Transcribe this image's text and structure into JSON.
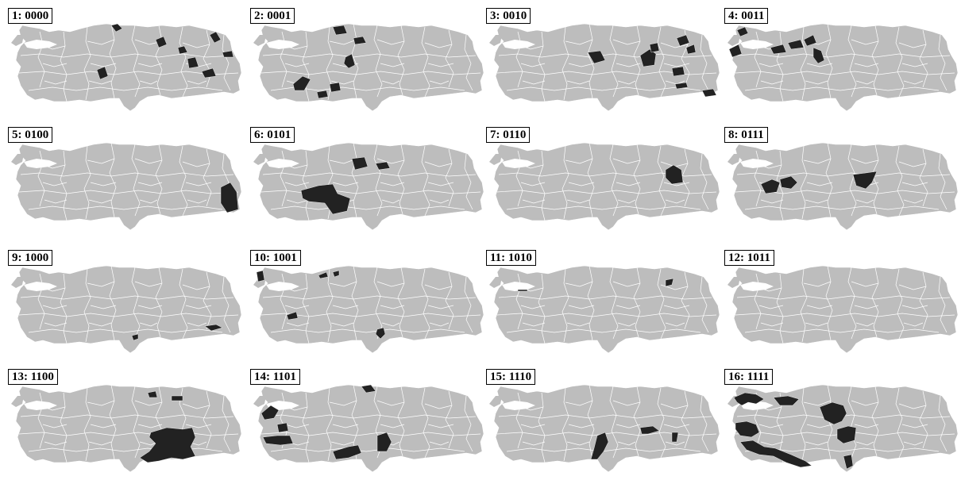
{
  "figure": {
    "panels": [
      {
        "label": "1: 0000"
      },
      {
        "label": "2: 0001"
      },
      {
        "label": "3: 0010"
      },
      {
        "label": "4: 0011"
      },
      {
        "label": "5: 0100"
      },
      {
        "label": "6: 0101"
      },
      {
        "label": "7: 0110"
      },
      {
        "label": "8: 0111"
      },
      {
        "label": "9: 1000"
      },
      {
        "label": "10: 1001"
      },
      {
        "label": "11: 1010"
      },
      {
        "label": "12: 1011"
      },
      {
        "label": "13: 1100"
      },
      {
        "label": "14: 1101"
      },
      {
        "label": "15: 1110"
      },
      {
        "label": "16: 1111"
      }
    ]
  },
  "colors": {
    "map_fill": "#bdbdbd",
    "region_border": "#ffffff",
    "highlight_fill": "#222222",
    "label_border": "#000000"
  },
  "map_subject": "provinces-of-turkey"
}
